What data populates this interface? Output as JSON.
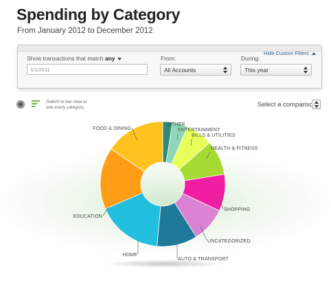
{
  "header": {
    "title": "Spending by Category",
    "subtitle": "From January 2012 to December 2012"
  },
  "filters": {
    "hide_link": "Hide Custom Filters",
    "match_label": "Show transactions that match",
    "match_value": "any",
    "date_value": "1/1/2011",
    "from_label": "From:",
    "from_value": "All Accounts",
    "during_label": "During:",
    "during_value": "This year"
  },
  "view_toggle": {
    "switch_text_1": "Switch to bar view to",
    "switch_text_2": "see every category."
  },
  "comparison": {
    "label": "Select a comparison"
  },
  "colors": {
    "accent_link": "#2a5d91",
    "bar_icon": "#6cb33f"
  },
  "chart_data": {
    "type": "pie",
    "style": "donut",
    "categories": [
      "OTHER",
      "ENTERTAINMENT",
      "BILLS & UTILITIES",
      "HEALTH & FITNESS",
      "SHOPPING",
      "UNCATEGORIZED",
      "AUTO & TRANSPORT",
      "HOME",
      "EDUCATION",
      "FOOD & DINING"
    ],
    "values": [
      2.5,
      4,
      7,
      9,
      9.5,
      9,
      10.5,
      17,
      16,
      15.5
    ],
    "colors": [
      "#2e8b7a",
      "#8fd6b8",
      "#e8ff5a",
      "#a5db32",
      "#ef1ea2",
      "#d983d2",
      "#1f7a99",
      "#22bede",
      "#ff9e16",
      "#ffc21e"
    ],
    "legend": "none",
    "title": "",
    "xlabel": "",
    "ylabel": ""
  }
}
